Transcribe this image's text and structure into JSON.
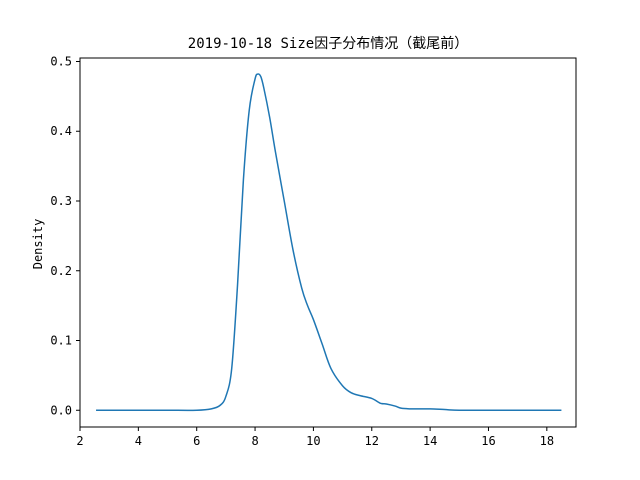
{
  "chart_data": {
    "type": "line",
    "title": "2019-10-18 Size因子分布情况（截尾前）",
    "xlabel": "",
    "ylabel": "Density",
    "xlim": [
      2.0,
      19.0
    ],
    "ylim": [
      -0.024,
      0.505
    ],
    "xticks": [
      2,
      4,
      6,
      8,
      10,
      12,
      14,
      16,
      18
    ],
    "yticks": [
      0.0,
      0.1,
      0.2,
      0.3,
      0.4,
      0.5
    ],
    "ytick_labels": [
      "0.0",
      "0.1",
      "0.2",
      "0.3",
      "0.4",
      "0.5"
    ],
    "grid": false,
    "series": [
      {
        "color": "#1f77b4",
        "x": [
          2.55,
          4.0,
          5.0,
          6.0,
          6.5,
          6.8,
          7.0,
          7.2,
          7.4,
          7.6,
          7.8,
          8.0,
          8.1,
          8.2,
          8.3,
          8.5,
          8.7,
          9.0,
          9.3,
          9.6,
          9.8,
          10.0,
          10.3,
          10.6,
          11.0,
          11.3,
          11.6,
          12.0,
          12.3,
          12.5,
          12.8,
          13.0,
          13.3,
          13.6,
          14.0,
          14.5,
          15.0,
          16.0,
          17.0,
          18.5
        ],
        "y": [
          0.0,
          0.0,
          0.0,
          0.0,
          0.002,
          0.007,
          0.02,
          0.06,
          0.18,
          0.33,
          0.43,
          0.475,
          0.482,
          0.478,
          0.462,
          0.42,
          0.37,
          0.3,
          0.23,
          0.175,
          0.15,
          0.13,
          0.095,
          0.06,
          0.035,
          0.025,
          0.021,
          0.017,
          0.01,
          0.009,
          0.006,
          0.003,
          0.002,
          0.002,
          0.002,
          0.001,
          0.0,
          0.0,
          0.0,
          0.0
        ]
      }
    ]
  }
}
